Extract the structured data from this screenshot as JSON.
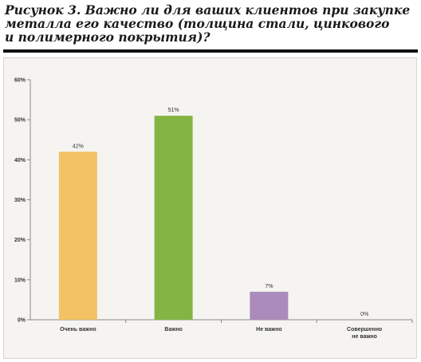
{
  "figure": {
    "title_lines": [
      "Рисунок 3. Важно ли для ваших клиентов при закупке",
      "металла его качество (толщина стали, цинкового",
      "и полимерного покрытия)?"
    ]
  },
  "chart_data": {
    "type": "bar",
    "categories": [
      [
        "Очень важно"
      ],
      [
        "Важно"
      ],
      [
        "Не важно"
      ],
      [
        "Совершенно",
        "не важно"
      ]
    ],
    "values": [
      42,
      51,
      7,
      0
    ],
    "data_labels": [
      "42%",
      "51%",
      "7%",
      "0%"
    ],
    "bar_colors": [
      "#f3c265",
      "#84b443",
      "#ab8bbb",
      "#cccccc"
    ],
    "ylim": [
      0,
      60
    ],
    "yticks": [
      0,
      10,
      20,
      30,
      40,
      50,
      60
    ],
    "ytick_labels": [
      "0%",
      "10%",
      "20%",
      "30%",
      "40%",
      "50%",
      "60%"
    ],
    "grid": false,
    "legend": "none"
  }
}
